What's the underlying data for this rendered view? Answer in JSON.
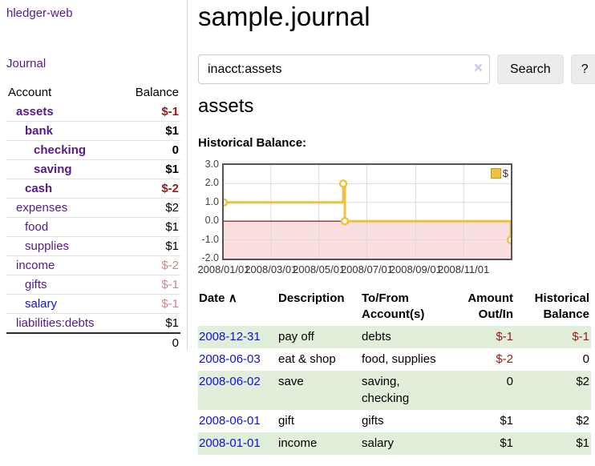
{
  "sidebar": {
    "app_title": "hledger-web",
    "nav": {
      "journal": "Journal"
    },
    "accounts_table": {
      "headers": {
        "account": "Account",
        "balance": "Balance"
      },
      "rows": [
        {
          "name": "assets",
          "depth": 0,
          "bold": true,
          "balance": "$-1",
          "balance_class": "amt-neg",
          "link_class": ""
        },
        {
          "name": "bank",
          "depth": 1,
          "bold": true,
          "balance": "$1",
          "balance_class": "",
          "link_class": ""
        },
        {
          "name": "checking",
          "depth": 2,
          "bold": true,
          "balance": "0",
          "balance_class": "",
          "link_class": ""
        },
        {
          "name": "saving",
          "depth": 2,
          "bold": true,
          "balance": "$1",
          "balance_class": "",
          "link_class": ""
        },
        {
          "name": "cash",
          "depth": 1,
          "bold": true,
          "balance": "$-2",
          "balance_class": "amt-neg",
          "link_class": ""
        },
        {
          "name": "expenses",
          "depth": 0,
          "bold": false,
          "balance": "$2",
          "balance_class": "",
          "link_class": ""
        },
        {
          "name": "food",
          "depth": 1,
          "bold": false,
          "balance": "$1",
          "balance_class": "",
          "link_class": ""
        },
        {
          "name": "supplies",
          "depth": 1,
          "bold": false,
          "balance": "$1",
          "balance_class": "",
          "link_class": ""
        },
        {
          "name": "income",
          "depth": 0,
          "bold": false,
          "balance": "$-2",
          "balance_class": "amt-neg-muted",
          "link_class": ""
        },
        {
          "name": "gifts",
          "depth": 1,
          "bold": false,
          "balance": "$-1",
          "balance_class": "amt-neg-muted",
          "link_class": ""
        },
        {
          "name": "salary",
          "depth": 1,
          "bold": false,
          "balance": "$-1",
          "balance_class": "amt-neg-muted",
          "link_class": "link-blue"
        },
        {
          "name": "liabilities:debts",
          "depth": 0,
          "bold": false,
          "balance": "$1",
          "balance_class": "",
          "link_class": ""
        }
      ],
      "total": "0"
    }
  },
  "main": {
    "title": "sample.journal",
    "search": {
      "value": "inacct:assets",
      "clear_icon": "×",
      "button": "Search",
      "help_button": "?"
    },
    "account_heading": "assets",
    "chart_heading": "Historical Balance:"
  },
  "chart_data": {
    "type": "line",
    "style": "step",
    "title": "Historical Balance:",
    "legend": {
      "label": "$",
      "position": "top-right"
    },
    "series": [
      {
        "name": "$",
        "points": [
          [
            "2008-01-01",
            1
          ],
          [
            "2008-06-01",
            2
          ],
          [
            "2008-06-03",
            0
          ],
          [
            "2008-12-31",
            -1
          ]
        ]
      }
    ],
    "x_range": [
      "2008-01-01",
      "2008-12-31"
    ],
    "y_range": [
      -2,
      3
    ],
    "y_ticks": [
      3.0,
      2.0,
      1.0,
      0.0,
      -1.0,
      -2.0
    ],
    "x_ticks": [
      {
        "label": "2008/01/01",
        "date": "2008-01-01"
      },
      {
        "label": "2008/03/01",
        "date": "2008-03-01"
      },
      {
        "label": "2008/05/01",
        "date": "2008-05-01"
      },
      {
        "label": "2008/07/01",
        "date": "2008-07-01"
      },
      {
        "label": "2008/09/01",
        "date": "2008-09-01"
      },
      {
        "label": "2008/11/01",
        "date": "2008-11-01"
      }
    ],
    "grid": true,
    "colors": {
      "line": "#edc240",
      "marker_fill": "#ffffff",
      "negative_region": "#fbdee0",
      "zero_line": "#8b0000",
      "gridline": "#d9d9d9",
      "border": "#545454"
    }
  },
  "transactions": {
    "headers": {
      "date": "Date",
      "description": "Description",
      "account": "To/From Account(s)",
      "amount": "Amount Out/In",
      "balance": "Historical Balance"
    },
    "sort_icon": "∧",
    "rows": [
      {
        "date": "2008-12-31",
        "description": "pay off",
        "accounts": "debts",
        "amount": "$-1",
        "amount_class": "amt-neg",
        "balance": "$-1",
        "balance_class": "amt-neg",
        "green": true
      },
      {
        "date": "2008-06-03",
        "description": "eat & shop",
        "accounts": "food, supplies",
        "amount": "$-2",
        "amount_class": "amt-neg",
        "balance": "0",
        "balance_class": "",
        "green": false
      },
      {
        "date": "2008-06-02",
        "description": "save",
        "accounts": "saving, checking",
        "amount": "0",
        "amount_class": "",
        "balance": "$2",
        "balance_class": "",
        "green": true
      },
      {
        "date": "2008-06-01",
        "description": "gift",
        "accounts": "gifts",
        "amount": "$1",
        "amount_class": "",
        "balance": "$2",
        "balance_class": "",
        "green": false
      },
      {
        "date": "2008-01-01",
        "description": "income",
        "accounts": "salary",
        "amount": "$1",
        "amount_class": "",
        "balance": "$1",
        "balance_class": "",
        "green": true
      }
    ]
  }
}
